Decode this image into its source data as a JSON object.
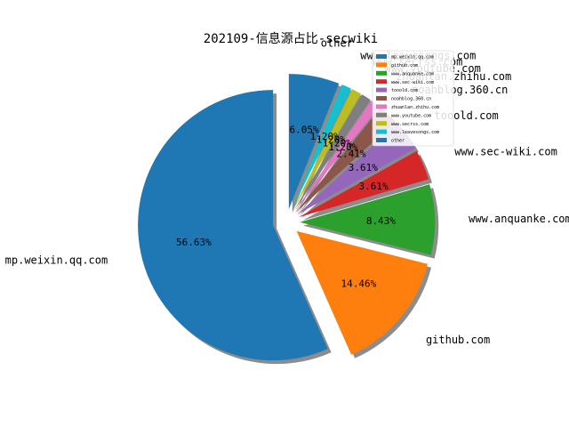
{
  "chart_data": {
    "type": "pie",
    "title": "202109-信息源占比-secwiki",
    "slices": [
      {
        "label": "mp.weixin.qq.com",
        "percent": 56.63,
        "pct_text": "56.63%",
        "color": "#1f77b4"
      },
      {
        "label": "github.com",
        "percent": 14.46,
        "pct_text": "14.46%",
        "color": "#ff7f0e"
      },
      {
        "label": "www.anquanke.com",
        "percent": 8.43,
        "pct_text": "8.43%",
        "color": "#2ca02c"
      },
      {
        "label": "www.sec-wiki.com",
        "percent": 3.61,
        "pct_text": "3.61%",
        "color": "#d62728"
      },
      {
        "label": "tooold.com",
        "percent": 3.61,
        "pct_text": "3.61%",
        "color": "#9467bd"
      },
      {
        "label": "noahblog.360.cn",
        "percent": 2.41,
        "pct_text": "2.41%",
        "color": "#8c564b"
      },
      {
        "label": "zhuanlan.zhihu.com",
        "percent": 1.2,
        "pct_text": "1.20%",
        "color": "#e377c2"
      },
      {
        "label": "www.youtube.com",
        "percent": 1.2,
        "pct_text": "1.20%",
        "color": "#7f7f7f"
      },
      {
        "label": "www.secrss.com",
        "percent": 1.2,
        "pct_text": "1.20%",
        "color": "#bcbd22"
      },
      {
        "label": "www.leavesongs.com",
        "percent": 1.2,
        "pct_text": "1.20%",
        "color": "#17becf"
      },
      {
        "label": "other",
        "percent": 6.05,
        "pct_text": "6.05%",
        "color": "#1f77b4"
      }
    ],
    "legend": {
      "placement": "upper-right"
    },
    "shadow": true,
    "exploded": true
  }
}
